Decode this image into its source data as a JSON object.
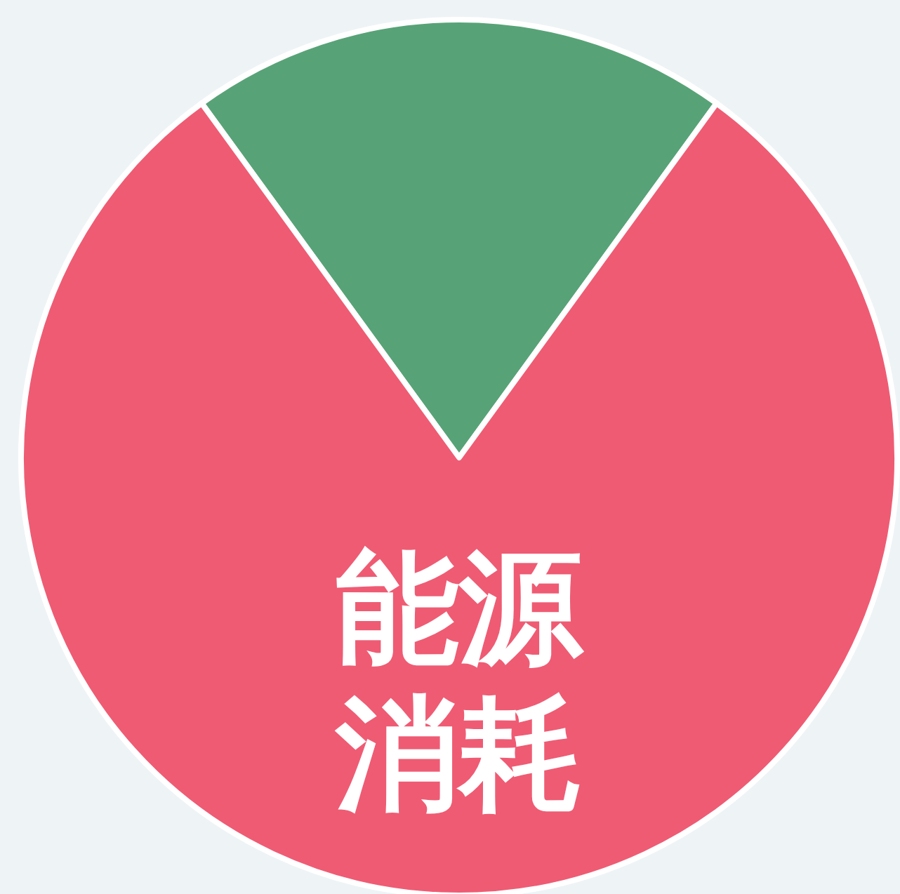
{
  "chart_data": {
    "type": "pie",
    "categories": [
      null,
      "能源消耗"
    ],
    "values": [
      20,
      80
    ],
    "colors": [
      "#57a377",
      "#ef5b73"
    ],
    "legend": false
  }
}
